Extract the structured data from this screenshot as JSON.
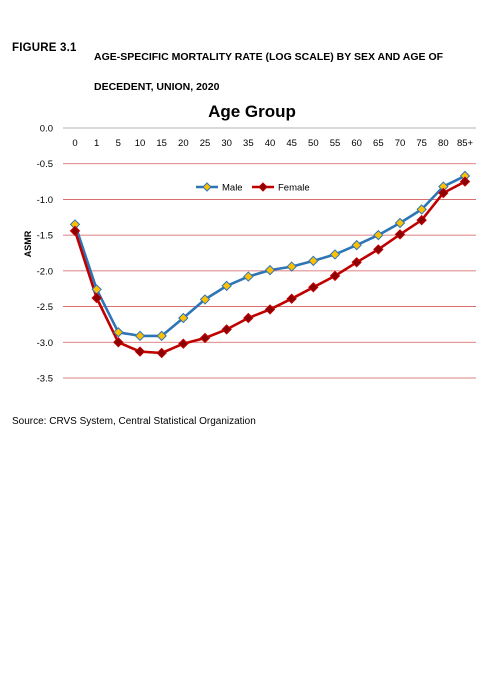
{
  "figure": {
    "number": "FIGURE 3.1",
    "title": "AGE-SPECIFIC MORTALITY RATE (LOG SCALE) BY SEX AND AGE OF DECEDENT, UNION, 2020"
  },
  "source": "Source: CRVS System, Central Statistical Organization",
  "chart_data": {
    "type": "line",
    "title": "Age Group",
    "xlabel": "",
    "ylabel": "ASMR",
    "categories": [
      "0",
      "1",
      "5",
      "10",
      "15",
      "20",
      "25",
      "30",
      "35",
      "40",
      "45",
      "50",
      "55",
      "60",
      "65",
      "70",
      "75",
      "80",
      "85+"
    ],
    "ylim": [
      -3.5,
      0.0
    ],
    "yticks": [
      "0.0",
      "-0.5",
      "-1.0",
      "-1.5",
      "-2.0",
      "-2.5",
      "-3.0",
      "-3.5"
    ],
    "ytick_values": [
      0.0,
      -0.5,
      -1.0,
      -1.5,
      -2.0,
      -2.5,
      -3.0,
      -3.5
    ],
    "grid": true,
    "legend_position": "top-center",
    "series": [
      {
        "name": "Male",
        "color": "#2E75B6",
        "marker_color": "#FFC000",
        "values": [
          -1.35,
          -2.26,
          -2.86,
          -2.91,
          -2.91,
          -2.66,
          -2.4,
          -2.21,
          -2.08,
          -1.99,
          -1.94,
          -1.86,
          -1.77,
          -1.64,
          -1.5,
          -1.33,
          -1.14,
          -0.82,
          -0.67
        ]
      },
      {
        "name": "Female",
        "color": "#C00000",
        "marker_color": "#8B0000",
        "values": [
          -1.44,
          -2.38,
          -3.0,
          -3.13,
          -3.15,
          -3.02,
          -2.94,
          -2.82,
          -2.66,
          -2.54,
          -2.39,
          -2.23,
          -2.07,
          -1.88,
          -1.7,
          -1.49,
          -1.29,
          -0.91,
          -0.75
        ]
      }
    ]
  }
}
